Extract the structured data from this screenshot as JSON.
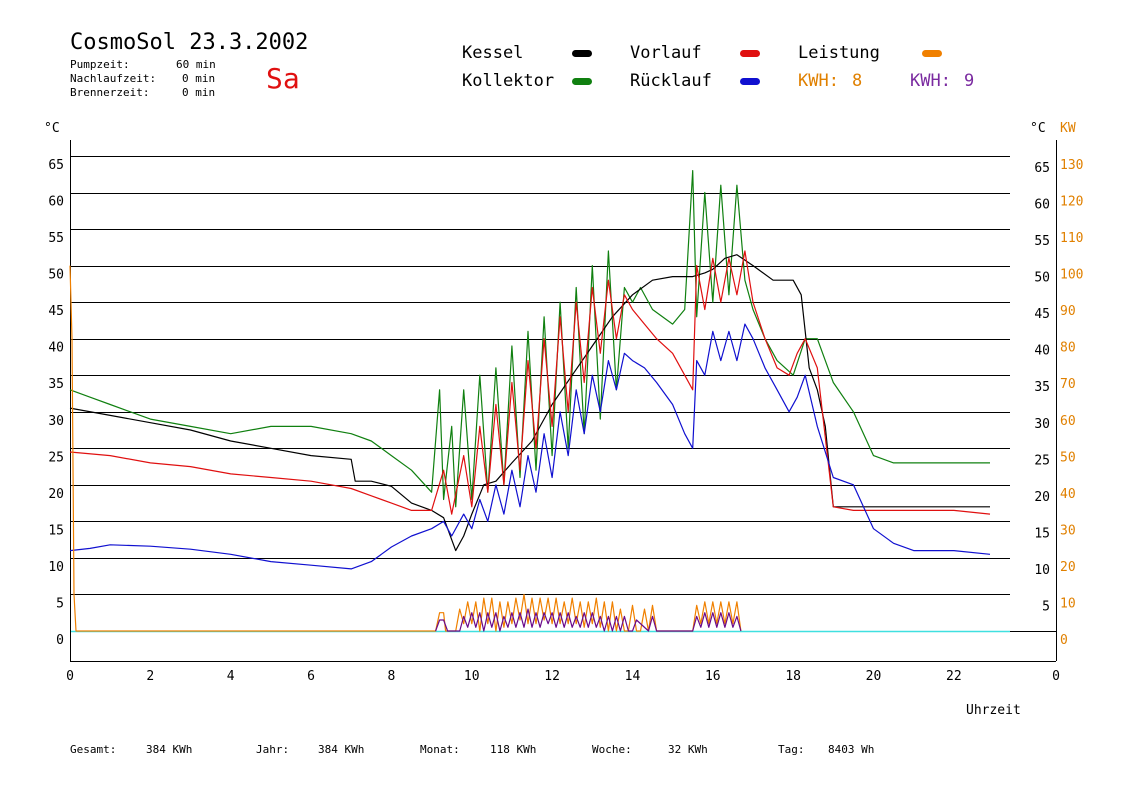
{
  "header": {
    "title": "CosmoSol 23.3.2002",
    "day": "Sa",
    "info": [
      {
        "label": "Pumpzeit:",
        "value": "60 min"
      },
      {
        "label": "Nachlaufzeit:",
        "value": "0 min"
      },
      {
        "label": "Brennerzeit:",
        "value": "0 min"
      }
    ]
  },
  "legend": {
    "items": [
      {
        "label": "Kessel",
        "color": "#000000"
      },
      {
        "label": "Vorlauf",
        "color": "#e01010"
      },
      {
        "label": "Leistung",
        "color": "#f08000"
      },
      {
        "label": "Kollektor",
        "color": "#108010"
      },
      {
        "label": "Rücklauf",
        "color": "#1010d0"
      }
    ],
    "kwh": [
      {
        "label": "KWH:",
        "value": "8",
        "color": "#e08000"
      },
      {
        "label": "KWH:",
        "value": "9",
        "color": "#7a2aa0"
      }
    ]
  },
  "footer": [
    {
      "label": "Gesamt:",
      "value": "384 KWh"
    },
    {
      "label": "Jahr:",
      "value": "384 KWh"
    },
    {
      "label": "Monat:",
      "value": "118 KWh"
    },
    {
      "label": "Woche:",
      "value": "32 KWh"
    },
    {
      "label": "Tag:",
      "value": "8403 Wh"
    }
  ],
  "chart_data": {
    "type": "line",
    "xlabel": "Uhrzeit",
    "ylabel_left": "°C",
    "ylabel_right": [
      "°C",
      "KW"
    ],
    "xlim": [
      0,
      24
    ],
    "ylim": [
      0,
      65
    ],
    "y2lim": [
      0,
      130
    ],
    "x_ticks": [
      "0",
      "2",
      "4",
      "6",
      "8",
      "10",
      "12",
      "14",
      "16",
      "18",
      "20",
      "22",
      "0"
    ],
    "y_ticks_left": [
      "0",
      "5",
      "10",
      "15",
      "20",
      "25",
      "30",
      "35",
      "40",
      "45",
      "50",
      "55",
      "60",
      "65"
    ],
    "y_ticks_right": [
      "5",
      "10",
      "15",
      "20",
      "25",
      "30",
      "35",
      "40",
      "45",
      "50",
      "55",
      "60",
      "65"
    ],
    "y2_ticks": [
      "0",
      "10",
      "20",
      "30",
      "40",
      "50",
      "60",
      "70",
      "80",
      "90",
      "100",
      "110",
      "120",
      "130"
    ],
    "grid": "horizontal",
    "baseline_color": "#40e0e0",
    "series": [
      {
        "name": "Kollektor",
        "color": "#108010",
        "x": [
          0,
          0.5,
          1,
          1.5,
          2,
          3,
          4,
          5,
          6,
          7,
          7.5,
          8,
          8.5,
          9,
          9.2,
          9.3,
          9.5,
          9.6,
          9.8,
          10,
          10.2,
          10.4,
          10.6,
          10.8,
          11,
          11.2,
          11.4,
          11.6,
          11.8,
          12,
          12.2,
          12.4,
          12.6,
          12.8,
          13,
          13.2,
          13.4,
          13.6,
          13.8,
          14,
          14.2,
          14.5,
          15,
          15.3,
          15.5,
          15.6,
          15.8,
          16,
          16.2,
          16.4,
          16.6,
          16.8,
          17,
          17.3,
          17.6,
          18,
          18.3,
          18.6,
          19,
          19.5,
          20,
          20.5,
          21,
          21.5,
          22,
          22.5,
          22.9
        ],
        "y": [
          33,
          32,
          31,
          30,
          29,
          28,
          27,
          28,
          28,
          27,
          26,
          24,
          22,
          19,
          33,
          18,
          28,
          17,
          33,
          18,
          35,
          19,
          36,
          20,
          39,
          21,
          41,
          22,
          43,
          24,
          45,
          25,
          47,
          27,
          50,
          29,
          52,
          33,
          47,
          45,
          47,
          44,
          42,
          44,
          63,
          43,
          60,
          45,
          61,
          46,
          61,
          48,
          44,
          40,
          37,
          35,
          40,
          40,
          34,
          30,
          24,
          23,
          23,
          23,
          23,
          23,
          23
        ]
      },
      {
        "name": "Kessel",
        "color": "#000000",
        "x": [
          0,
          1,
          2,
          3,
          4,
          5,
          6,
          7,
          7.1,
          7.5,
          8,
          8.5,
          9,
          9.3,
          9.6,
          9.8,
          10,
          10.3,
          10.6,
          11,
          11.5,
          12,
          12.5,
          13,
          13.5,
          14,
          14.5,
          15,
          15.5,
          15.8,
          16,
          16.3,
          16.6,
          17,
          17.5,
          18,
          18.2,
          18.4,
          18.6,
          18.8,
          19,
          19.5,
          20,
          21,
          22,
          22.9
        ],
        "y": [
          30.5,
          29.5,
          28.5,
          27.5,
          26,
          25,
          24,
          23.5,
          20.5,
          20.5,
          19.8,
          17.5,
          16.5,
          15.5,
          11,
          13,
          16,
          20,
          20.5,
          23,
          26,
          31,
          35,
          39,
          43,
          46,
          48,
          48.5,
          48.5,
          49,
          49.5,
          51,
          51.5,
          50,
          48,
          48,
          46,
          36,
          33,
          28,
          17,
          17,
          17,
          17,
          17,
          17
        ]
      },
      {
        "name": "Vorlauf",
        "color": "#e01010",
        "x": [
          0,
          1,
          2,
          3,
          4,
          5,
          6,
          7,
          7.5,
          8,
          8.5,
          9,
          9.3,
          9.5,
          9.8,
          10,
          10.2,
          10.4,
          10.6,
          10.8,
          11,
          11.2,
          11.4,
          11.6,
          11.8,
          12,
          12.2,
          12.4,
          12.6,
          12.8,
          13,
          13.2,
          13.4,
          13.6,
          13.8,
          14,
          14.3,
          14.6,
          15,
          15.3,
          15.5,
          15.6,
          15.8,
          16,
          16.2,
          16.4,
          16.6,
          16.8,
          17,
          17.3,
          17.6,
          17.9,
          18.1,
          18.3,
          18.6,
          19,
          19.5,
          20,
          21,
          22,
          22.9
        ],
        "y": [
          24.5,
          24,
          23,
          22.5,
          21.5,
          21,
          20.5,
          19.5,
          18.5,
          17.5,
          16.5,
          16.5,
          22,
          16,
          24,
          17,
          28,
          19,
          31,
          20,
          34,
          22,
          37,
          25,
          40,
          28,
          43,
          30,
          45,
          34,
          47,
          38,
          48,
          40,
          46,
          44,
          42,
          40,
          38,
          35,
          33,
          50,
          44,
          51,
          45,
          51,
          46,
          52,
          45,
          40,
          36,
          35,
          38,
          40,
          36,
          17,
          16.5,
          16.5,
          16.5,
          16.5,
          16
        ]
      },
      {
        "name": "Rücklauf",
        "color": "#1010d0",
        "x": [
          0,
          0.5,
          1,
          2,
          3,
          4,
          5,
          6,
          7,
          7.5,
          8,
          8.5,
          9,
          9.3,
          9.5,
          9.8,
          10,
          10.2,
          10.4,
          10.6,
          10.8,
          11,
          11.2,
          11.4,
          11.6,
          11.8,
          12,
          12.2,
          12.4,
          12.6,
          12.8,
          13,
          13.2,
          13.4,
          13.6,
          13.8,
          14,
          14.3,
          14.6,
          15,
          15.3,
          15.5,
          15.6,
          15.8,
          16,
          16.2,
          16.4,
          16.6,
          16.8,
          17,
          17.3,
          17.6,
          17.9,
          18.1,
          18.3,
          18.6,
          19,
          19.5,
          20,
          20.5,
          21,
          22,
          22.9
        ],
        "y": [
          11,
          11.3,
          11.8,
          11.6,
          11.2,
          10.5,
          9.5,
          9,
          8.5,
          9.5,
          11.5,
          13,
          14,
          15,
          13,
          16,
          14,
          18,
          15,
          20,
          16,
          22,
          17,
          24,
          19,
          27,
          21,
          30,
          24,
          33,
          27,
          35,
          30,
          37,
          33,
          38,
          37,
          36,
          34,
          31,
          27,
          25,
          37,
          35,
          41,
          37,
          41,
          37,
          42,
          40,
          36,
          33,
          30,
          32,
          35,
          28,
          21,
          20,
          14,
          12,
          11,
          11,
          10.5
        ]
      },
      {
        "name": "Leistung",
        "color": "#f08000",
        "axis": "right",
        "x": [
          0,
          0.05,
          0.1,
          0.15,
          0.2,
          9.1,
          9.2,
          9.3,
          9.35,
          9.4,
          9.6,
          9.7,
          9.8,
          9.9,
          10,
          10.1,
          10.2,
          10.3,
          10.4,
          10.5,
          10.6,
          10.7,
          10.8,
          10.9,
          11,
          11.1,
          11.2,
          11.3,
          11.4,
          11.5,
          11.6,
          11.7,
          11.8,
          11.9,
          12,
          12.1,
          12.2,
          12.3,
          12.4,
          12.5,
          12.6,
          12.7,
          12.8,
          12.9,
          13,
          13.1,
          13.2,
          13.3,
          13.4,
          13.5,
          13.6,
          13.7,
          13.8,
          13.9,
          14,
          14.1,
          14.2,
          14.3,
          14.4,
          14.5,
          14.6,
          14.7,
          15.5,
          15.6,
          15.7,
          15.8,
          15.9,
          16,
          16.1,
          16.2,
          16.3,
          16.4,
          16.5,
          16.6,
          16.7
        ],
        "y": [
          100,
          80,
          10,
          0,
          0,
          0,
          5,
          5,
          0,
          0,
          0,
          6,
          2,
          8,
          2,
          8,
          0,
          9,
          2,
          9,
          0,
          8,
          1,
          8,
          2,
          9,
          3,
          10,
          2,
          9,
          2,
          9,
          3,
          9,
          2,
          9,
          2,
          8,
          2,
          9,
          2,
          8,
          1,
          8,
          2,
          9,
          1,
          8,
          0,
          8,
          0,
          6,
          0,
          0,
          7,
          0,
          0,
          6,
          0,
          7,
          0,
          0,
          0,
          7,
          2,
          8,
          2,
          8,
          2,
          8,
          2,
          8,
          2,
          8,
          0
        ]
      },
      {
        "name": "Leistung 2",
        "color": "#6a0a8a",
        "axis": "right",
        "x": [
          9.1,
          9.2,
          9.3,
          9.4,
          9.7,
          9.8,
          9.9,
          10,
          10.1,
          10.2,
          10.3,
          10.4,
          10.5,
          10.6,
          10.7,
          10.8,
          10.9,
          11,
          11.1,
          11.2,
          11.3,
          11.4,
          11.5,
          11.6,
          11.7,
          11.8,
          11.9,
          12,
          12.1,
          12.2,
          12.3,
          12.4,
          12.5,
          12.6,
          12.7,
          12.8,
          12.9,
          13,
          13.1,
          13.2,
          13.3,
          13.4,
          13.5,
          13.6,
          13.7,
          13.8,
          13.9,
          14,
          14.1,
          14.4,
          14.5,
          14.6,
          15.5,
          15.6,
          15.7,
          15.8,
          15.9,
          16,
          16.1,
          16.2,
          16.3,
          16.4,
          16.5,
          16.6,
          16.7
        ],
        "y": [
          0,
          3,
          3,
          0,
          0,
          4,
          1,
          5,
          1,
          5,
          0,
          5,
          1,
          5,
          0,
          4,
          1,
          5,
          1,
          5,
          1,
          6,
          1,
          5,
          1,
          5,
          2,
          5,
          1,
          5,
          1,
          5,
          1,
          4,
          1,
          5,
          1,
          5,
          1,
          4,
          0,
          4,
          0,
          4,
          0,
          4,
          0,
          0,
          3,
          0,
          4,
          0,
          0,
          4,
          1,
          5,
          1,
          5,
          1,
          5,
          1,
          5,
          1,
          4,
          0
        ]
      }
    ]
  }
}
